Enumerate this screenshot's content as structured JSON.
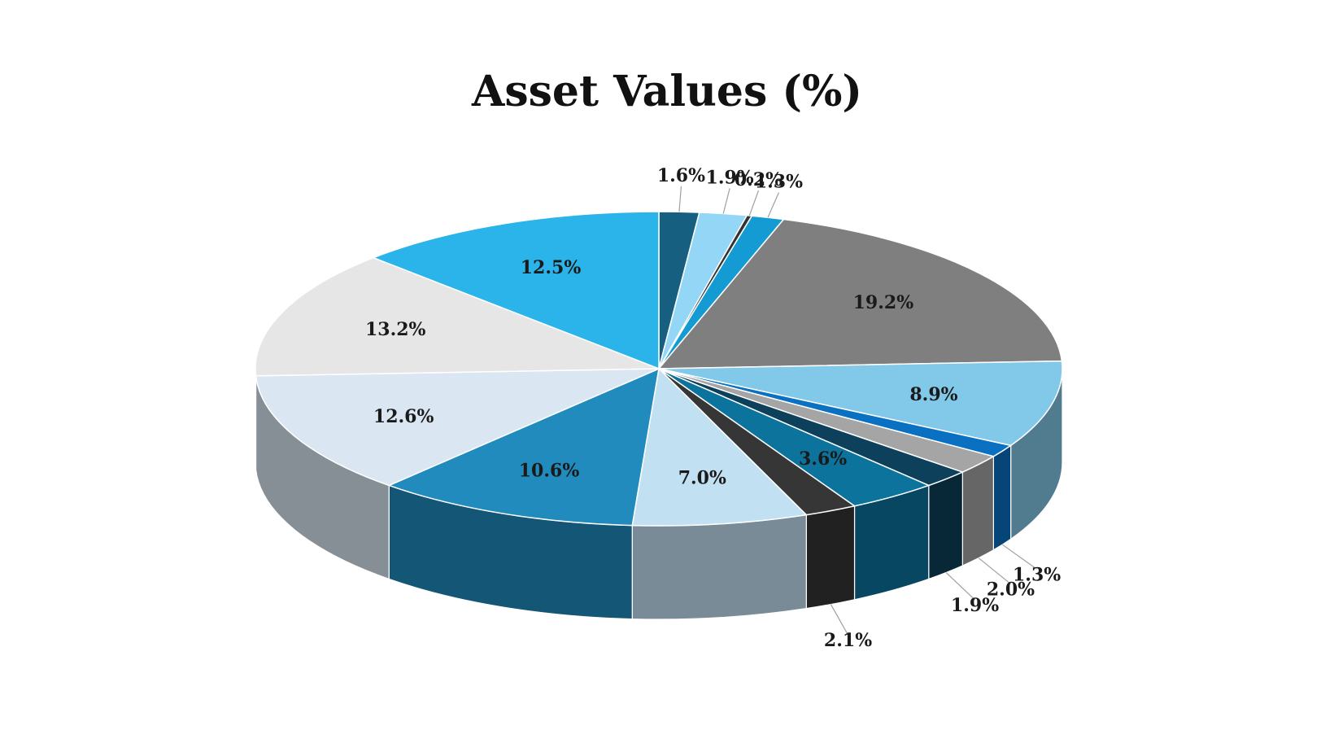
{
  "chart_data": {
    "type": "pie",
    "title": "Asset Values (%)",
    "slices": [
      {
        "value": 1.6,
        "label": "1.6%",
        "color": "#165F80"
      },
      {
        "value": 1.9,
        "label": "1.9%",
        "color": "#93D6F5"
      },
      {
        "value": 0.2,
        "label": "0.2%",
        "color": "#333333"
      },
      {
        "value": 1.3,
        "label": "1.3%",
        "color": "#159BD3"
      },
      {
        "value": 19.2,
        "label": "19.2%",
        "color": "#7F7F7F"
      },
      {
        "value": 8.9,
        "label": "8.9%",
        "color": "#82C8E8"
      },
      {
        "value": 1.3,
        "label": "1.3%",
        "color": "#0970C2"
      },
      {
        "value": 2.0,
        "label": "2.0%",
        "color": "#A5A5A5"
      },
      {
        "value": 1.9,
        "label": "1.9%",
        "color": "#0D405B"
      },
      {
        "value": 3.6,
        "label": "3.6%",
        "color": "#0B739C"
      },
      {
        "value": 2.1,
        "label": "2.1%",
        "color": "#363636"
      },
      {
        "value": 7.0,
        "label": "7.0%",
        "color": "#C1E0F2"
      },
      {
        "value": 10.6,
        "label": "10.6%",
        "color": "#218BBD"
      },
      {
        "value": 12.6,
        "label": "12.6%",
        "color": "#DAE7F2"
      },
      {
        "value": 13.2,
        "label": "13.2%",
        "color": "#E6E6E6"
      },
      {
        "value": 12.5,
        "label": "12.5%",
        "color": "#2BB4EA"
      }
    ]
  }
}
